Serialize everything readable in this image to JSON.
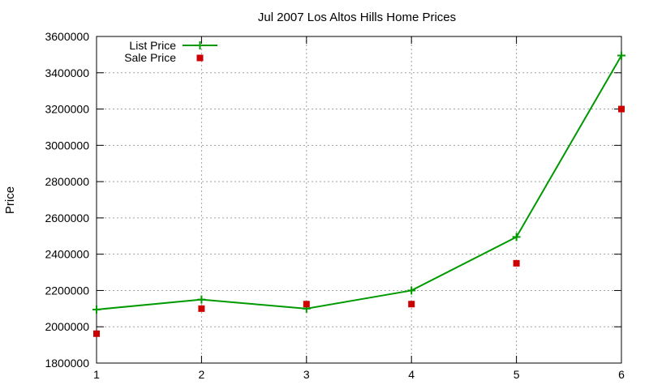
{
  "chart_data": {
    "type": "line",
    "title": "Jul 2007 Los Altos Hills Home Prices",
    "xlabel": "",
    "ylabel": "Price",
    "xlim": [
      1,
      6
    ],
    "ylim": [
      1800000,
      3600000
    ],
    "xticks": [
      1,
      2,
      3,
      4,
      5,
      6
    ],
    "yticks": [
      1800000,
      2000000,
      2200000,
      2400000,
      2600000,
      2800000,
      3000000,
      3200000,
      3400000,
      3600000
    ],
    "grid": true,
    "legend_position": "top-left",
    "series": [
      {
        "name": "List Price",
        "style": "line-with-plus-markers",
        "color": "#009900",
        "x": [
          1,
          2,
          3,
          4,
          5,
          6
        ],
        "y": [
          2095000,
          2150000,
          2100000,
          2200000,
          2495000,
          3495000
        ]
      },
      {
        "name": "Sale Price",
        "style": "square-markers",
        "color": "#cc0000",
        "x": [
          1,
          2,
          3,
          4,
          5,
          6
        ],
        "y": [
          1962000,
          2100000,
          2125000,
          2125000,
          2350000,
          3200000
        ]
      }
    ]
  }
}
